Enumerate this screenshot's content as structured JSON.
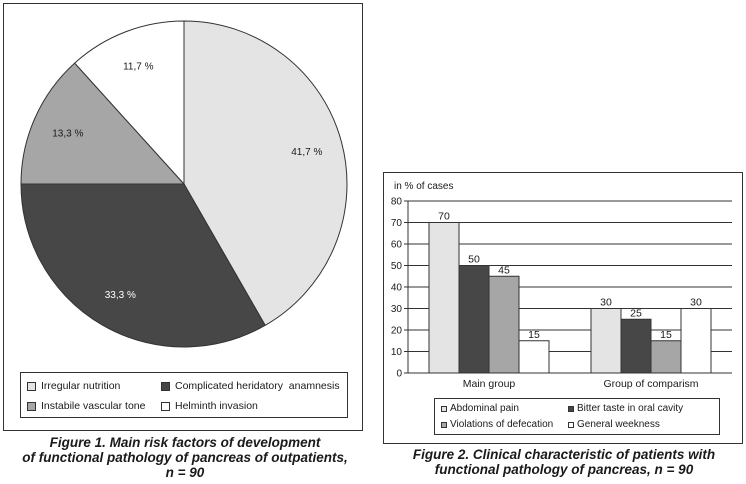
{
  "chart_data": [
    {
      "type": "pie",
      "slices": [
        {
          "label": "Irregular nutrition",
          "value": 41.7,
          "value_label": "41,7 %",
          "color": "#e4e4e4"
        },
        {
          "label": "Complicated heridatory  anamnesis",
          "value": 33.3,
          "value_label": "33,3 %",
          "color": "#474747"
        },
        {
          "label": "Instabile vascular tone",
          "value": 13.3,
          "value_label": "13,3 %",
          "color": "#a6a6a6"
        },
        {
          "label": "Helminth invasion",
          "value": 11.7,
          "value_label": "11,7 %",
          "color": "#ffffff"
        }
      ],
      "caption": [
        "Figure 1. Main risk factors of development",
        "of functional pathology of pancreas of outpatients,",
        "n = 90"
      ]
    },
    {
      "type": "bar",
      "ylabel": "in % of cases",
      "ylim": [
        0,
        80
      ],
      "yticks": [
        0,
        10,
        20,
        30,
        40,
        50,
        60,
        70,
        80
      ],
      "categories": [
        "Main group",
        "Group of comparism"
      ],
      "series": [
        {
          "name": "Abdominal pain",
          "values": [
            70,
            30
          ],
          "color": "#e4e4e4"
        },
        {
          "name": "Bitter taste in oral cavity",
          "values": [
            50,
            25
          ],
          "color": "#474747"
        },
        {
          "name": "Violations of defecation",
          "values": [
            45,
            15
          ],
          "color": "#a6a6a6"
        },
        {
          "name": "General weekness",
          "values": [
            15,
            30
          ],
          "color": "#ffffff"
        }
      ],
      "grid": true,
      "caption": [
        "Figure 2. Clinical characteristic of patients with",
        "functional pathology of pancreas, n = 90"
      ]
    }
  ]
}
